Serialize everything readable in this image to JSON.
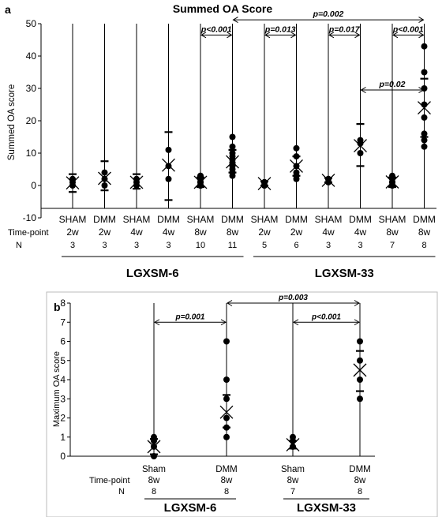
{
  "chart_data": [
    {
      "type": "scatter",
      "panel": "a",
      "title": "Summed OA Score",
      "ylabel": "Summed OA score",
      "ylim": [
        -10,
        50
      ],
      "yticks": [
        -10,
        0,
        10,
        20,
        30,
        40,
        50
      ],
      "row_labels": {
        "timepoint": "Time-point",
        "n": "N"
      },
      "groups": [
        {
          "condition": "SHAM",
          "time": "2w",
          "n": "3",
          "points": [
            0,
            1,
            2
          ],
          "mean": 0.8,
          "err_hi": 3.5,
          "err_lo": -2,
          "cross": true
        },
        {
          "condition": "DMM",
          "time": "2w",
          "n": "3",
          "points": [
            0,
            2,
            4
          ],
          "mean": 2.2,
          "err_hi": 7.5,
          "err_lo": -1.5,
          "cross": true
        },
        {
          "condition": "SHAM",
          "time": "4w",
          "n": "3",
          "points": [
            0,
            1,
            2
          ],
          "mean": 1.0,
          "err_hi": 3.5,
          "err_lo": -1,
          "cross": true
        },
        {
          "condition": "DMM",
          "time": "4w",
          "n": "3",
          "points": [
            2,
            6,
            11
          ],
          "mean": 6.3,
          "err_hi": 16.5,
          "err_lo": -4.5,
          "cross": true
        },
        {
          "condition": "SHAM",
          "time": "8w",
          "n": "10",
          "points": [
            0,
            0,
            0,
            1,
            1,
            1,
            2,
            2,
            3,
            3
          ],
          "mean": 1.0,
          "err_hi": 2.5,
          "err_lo": -0.5,
          "cross": true
        },
        {
          "condition": "DMM",
          "time": "8w",
          "n": "11",
          "points": [
            3,
            4,
            5,
            6,
            7,
            7,
            8,
            9,
            10,
            12,
            15
          ],
          "mean": 7.3,
          "err_hi": 11,
          "err_lo": 4,
          "cross": true
        },
        {
          "condition": "SHAM",
          "time": "2w",
          "n": "5",
          "points": [
            0,
            0,
            1,
            1,
            1
          ],
          "mean": 0.6,
          "err_hi": 1.2,
          "err_lo": 0,
          "cross": true
        },
        {
          "condition": "DMM",
          "time": "2w",
          "n": "6",
          "points": [
            2,
            3,
            4,
            6,
            9,
            11.5
          ],
          "mean": 6.0,
          "err_hi": 9,
          "err_lo": 3,
          "cross": true
        },
        {
          "condition": "SHAM",
          "time": "4w",
          "n": "3",
          "points": [
            1,
            2,
            2
          ],
          "mean": 1.6,
          "err_hi": 2.3,
          "err_lo": 1,
          "cross": true
        },
        {
          "condition": "DMM",
          "time": "4w",
          "n": "3",
          "points": [
            10,
            13,
            14
          ],
          "mean": 12.3,
          "err_hi": 19,
          "err_lo": 6,
          "cross": true
        },
        {
          "condition": "SHAM",
          "time": "8w",
          "n": "7",
          "points": [
            0,
            0,
            1,
            1,
            1,
            2,
            3
          ],
          "mean": 1.1,
          "err_hi": 2.5,
          "err_lo": -0.5,
          "cross": true
        },
        {
          "condition": "DMM",
          "time": "8w",
          "n": "8",
          "points": [
            12,
            14,
            16,
            21,
            25,
            30,
            35,
            43
          ],
          "mean": 24.0,
          "err_hi": 33,
          "err_lo": 15,
          "cross": true
        }
      ],
      "brackets": [
        {
          "from": 4,
          "to": 5,
          "y": 46.5,
          "label": "p<0.001"
        },
        {
          "from": 6,
          "to": 7,
          "y": 46.5,
          "label": "p=0.013"
        },
        {
          "from": 8,
          "to": 9,
          "y": 46.5,
          "label": "p=0.017"
        },
        {
          "from": 10,
          "to": 11,
          "y": 46.5,
          "label": "p<0.001"
        },
        {
          "from": 5,
          "to": 11,
          "y": 51.2,
          "label": "p=0.002"
        },
        {
          "from": 9,
          "to": 11,
          "y": 29.5,
          "label": "p=0.02"
        }
      ],
      "strains": [
        {
          "label": "LGXSM-6",
          "from": 0,
          "to": 5
        },
        {
          "label": "LGXSM-33",
          "from": 6,
          "to": 11
        }
      ]
    },
    {
      "type": "scatter",
      "panel": "b",
      "ylabel": "Maximum OA score",
      "ylim": [
        0,
        8
      ],
      "yticks": [
        0,
        1,
        2,
        3,
        4,
        5,
        6,
        7,
        8
      ],
      "row_labels": {
        "timepoint": "Time-point",
        "n": "N"
      },
      "groups": [
        {
          "condition": "Sham",
          "time": "8w",
          "n": "8",
          "points": [
            0,
            0.5,
            0.8,
            1
          ],
          "mean": 0.5,
          "err_hi": 0.9,
          "err_lo": 0.1,
          "cross": true
        },
        {
          "condition": "DMM",
          "time": "8w",
          "n": "8",
          "points": [
            1,
            1.5,
            2,
            3,
            4,
            6
          ],
          "mean": 2.3,
          "err_hi": 3.2,
          "err_lo": 1.5,
          "cross": true
        },
        {
          "condition": "Sham",
          "time": "8w",
          "n": "7",
          "points": [
            0.5,
            0.8,
            1
          ],
          "mean": 0.6,
          "err_hi": 0.8,
          "err_lo": 0.4,
          "cross": true
        },
        {
          "condition": "DMM",
          "time": "8w",
          "n": "8",
          "points": [
            3,
            4,
            5,
            6
          ],
          "mean": 4.5,
          "err_hi": 5.5,
          "err_lo": 3.4,
          "cross": true
        }
      ],
      "brackets": [
        {
          "from": 0,
          "to": 1,
          "y": 7.0,
          "label": "p=0.001"
        },
        {
          "from": 2,
          "to": 3,
          "y": 7.0,
          "label": "p<0.001"
        },
        {
          "from": 1,
          "to": 3,
          "y": 8.0,
          "label": "p=0.003"
        }
      ],
      "strains": [
        {
          "label": "LGXSM-6",
          "from": 0,
          "to": 1
        },
        {
          "label": "LGXSM-33",
          "from": 2,
          "to": 3
        }
      ]
    }
  ],
  "panel_labels": {
    "a": "a",
    "b": "b"
  }
}
